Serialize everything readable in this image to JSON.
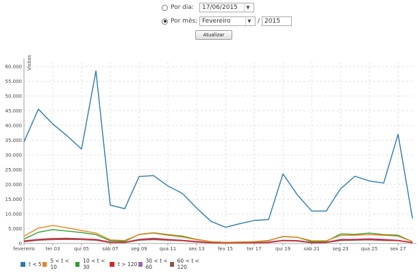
{
  "controls": {
    "por_dia_label": "Por dia:",
    "date_value": "17/06/2015",
    "por_mes_label": "Por mês:",
    "month_value": "Fevereiro",
    "year_separator": "/",
    "year_value": "2015",
    "update_button": "Atualizar",
    "selected": "por_mes"
  },
  "chart_data": {
    "type": "line",
    "title": "",
    "ylabel": "Visitas",
    "xlabel": "",
    "ylim": [
      0,
      60000
    ],
    "yticks": [
      0,
      5000,
      10000,
      15000,
      20000,
      25000,
      30000,
      35000,
      40000,
      45000,
      50000,
      55000,
      60000
    ],
    "ytick_labels": [
      "0",
      "5.000",
      "10.000",
      "15.000",
      "20.000",
      "25.000",
      "30.000",
      "35.000",
      "40.000",
      "45.000",
      "50.000",
      "55.000",
      "60.000"
    ],
    "x": [
      1,
      2,
      3,
      4,
      5,
      6,
      7,
      8,
      9,
      10,
      11,
      12,
      13,
      14,
      15,
      16,
      17,
      18,
      19,
      20,
      21,
      22,
      23,
      24,
      25,
      26,
      27,
      28
    ],
    "xtick_positions": [
      1,
      3,
      5,
      7,
      9,
      11,
      13,
      15,
      17,
      19,
      21,
      23,
      25,
      27
    ],
    "xtick_labels": [
      "fevereiro",
      "ter 03",
      "qui 05",
      "sáb 07",
      "seg 09",
      "qua 11",
      "sex 13",
      "fev 15",
      "ter 17",
      "qui 19",
      "sáb 21",
      "seg 23",
      "qua 25",
      "sex 27"
    ],
    "grid": true,
    "legend_position": "bottom-left",
    "series": [
      {
        "name": "t < 5",
        "color": "#2b78b1",
        "values": [
          34500,
          45500,
          40500,
          36500,
          32000,
          58500,
          13000,
          11800,
          22700,
          23000,
          19500,
          17000,
          12000,
          7500,
          5500,
          6700,
          7800,
          8100,
          23600,
          16500,
          11000,
          11000,
          18500,
          22800,
          21200,
          20500,
          37000,
          8500
        ]
      },
      {
        "name": "5 < t < 10",
        "color": "#f07e1a",
        "values": [
          2500,
          5200,
          6100,
          5300,
          4400,
          3500,
          1200,
          1000,
          3000,
          3500,
          2800,
          2200,
          1300,
          600,
          400,
          500,
          600,
          900,
          2400,
          2100,
          900,
          900,
          2700,
          2800,
          3000,
          2800,
          2500,
          600
        ]
      },
      {
        "name": "10 < t < 30",
        "color": "#2ea02c",
        "values": [
          1500,
          3800,
          4700,
          4200,
          3700,
          3000,
          900,
          700,
          3100,
          3600,
          3000,
          2500,
          1400,
          600,
          400,
          500,
          600,
          1000,
          2300,
          2100,
          600,
          700,
          3200,
          3100,
          3500,
          3000,
          2800,
          600
        ]
      },
      {
        "name": "t > 120",
        "color": "#d62728",
        "values": [
          800,
          1300,
          1600,
          1700,
          1600,
          1300,
          400,
          400,
          1300,
          1600,
          1300,
          1000,
          600,
          300,
          200,
          200,
          300,
          400,
          1000,
          900,
          300,
          400,
          1200,
          1300,
          1400,
          1200,
          1000,
          300
        ]
      },
      {
        "name": "30 < t < 60",
        "color": "#9467bd",
        "values": [
          900,
          1400,
          1700,
          1800,
          1500,
          1400,
          500,
          400,
          1400,
          1800,
          1400,
          1100,
          700,
          300,
          200,
          300,
          300,
          500,
          1100,
          1000,
          300,
          400,
          1400,
          1400,
          1600,
          1400,
          1100,
          300
        ]
      },
      {
        "name": "60 < t < 120",
        "color": "#8c564b",
        "values": [
          600,
          1100,
          1300,
          1400,
          1300,
          1100,
          300,
          300,
          1100,
          1300,
          1100,
          900,
          500,
          200,
          150,
          200,
          200,
          300,
          900,
          800,
          200,
          300,
          1000,
          1100,
          1200,
          1000,
          900,
          200
        ]
      }
    ]
  }
}
